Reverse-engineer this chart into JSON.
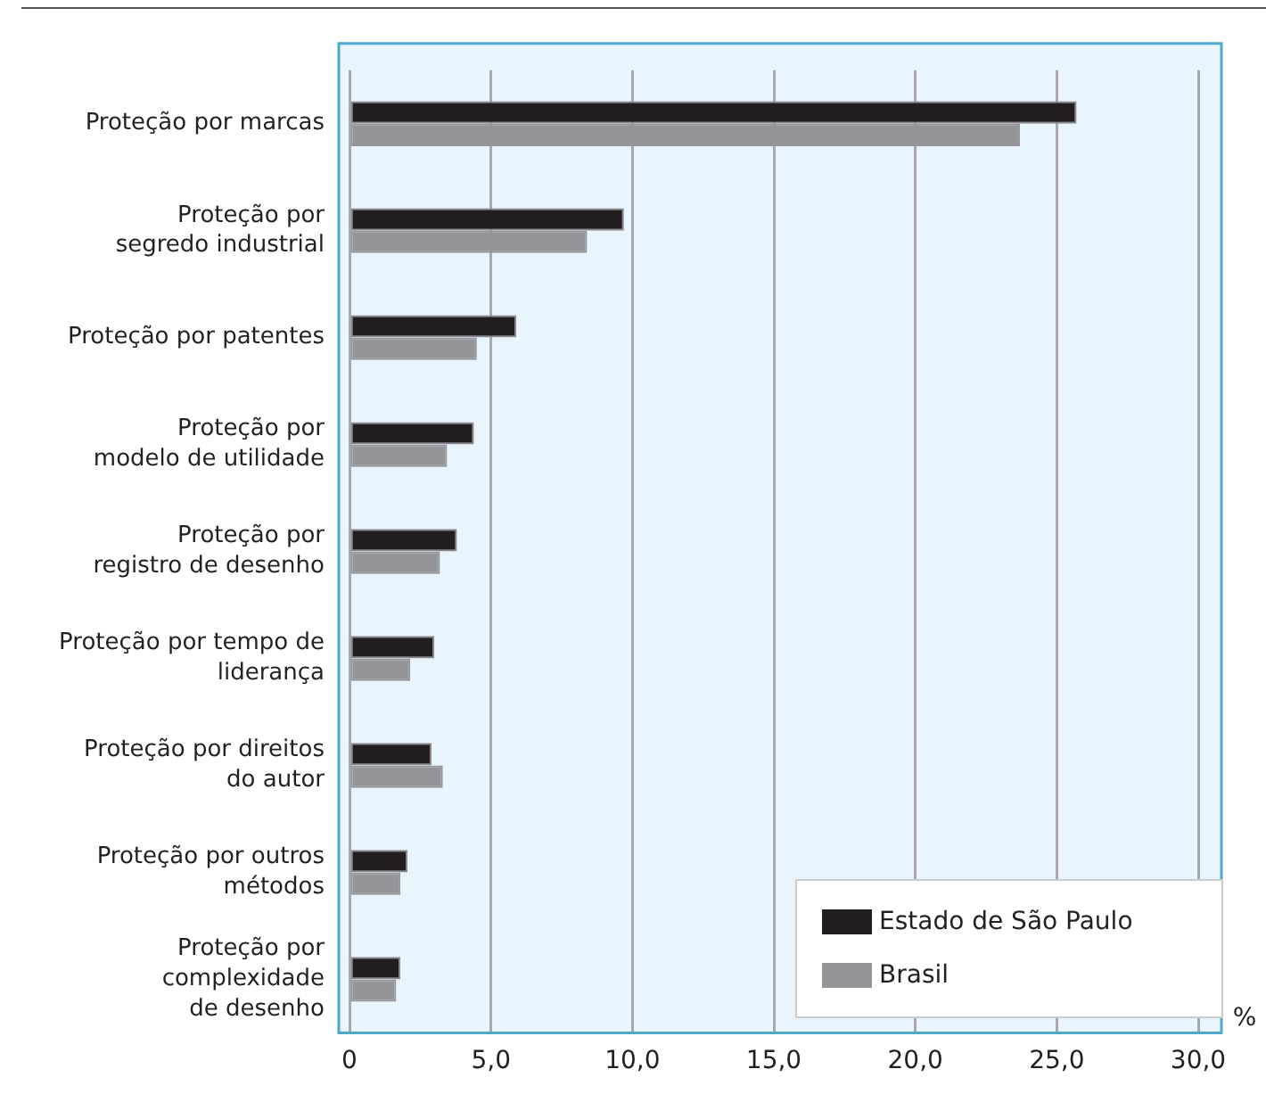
{
  "chart_data": {
    "type": "bar",
    "orientation": "horizontal",
    "xlabel": "%",
    "categories": [
      "Proteção por marcas",
      "Proteção por\nsegredo industrial",
      "Proteção por patentes",
      "Proteção por\nmodelo de utilidade",
      "Proteção por\nregistro de desenho",
      "Proteção por tempo de\nliderança",
      "Proteção por direitos\ndo autor",
      "Proteção por outros\nmétodos",
      "Proteção por\ncomplexidade\nde desenho"
    ],
    "series": [
      {
        "name": "Estado de São Paulo",
        "color": "#231f20",
        "values": [
          25.7,
          9.7,
          5.9,
          4.4,
          3.8,
          3.0,
          2.9,
          2.05,
          1.8
        ]
      },
      {
        "name": "Brasil",
        "color": "#939598",
        "values": [
          23.7,
          8.4,
          4.5,
          3.45,
          3.2,
          2.15,
          3.3,
          1.8,
          1.65
        ]
      }
    ],
    "xlim": [
      0,
      30
    ],
    "xticks": [
      0,
      {
        "value": 5,
        "label": "5,0"
      },
      {
        "value": 10,
        "label": "10,0"
      },
      {
        "value": 15,
        "label": "15,0"
      },
      {
        "value": 20,
        "label": "20,0"
      },
      {
        "value": 25,
        "label": "25,0"
      },
      {
        "value": 30,
        "label": "30,0"
      }
    ],
    "grid": "x",
    "legend": "bottom right"
  }
}
